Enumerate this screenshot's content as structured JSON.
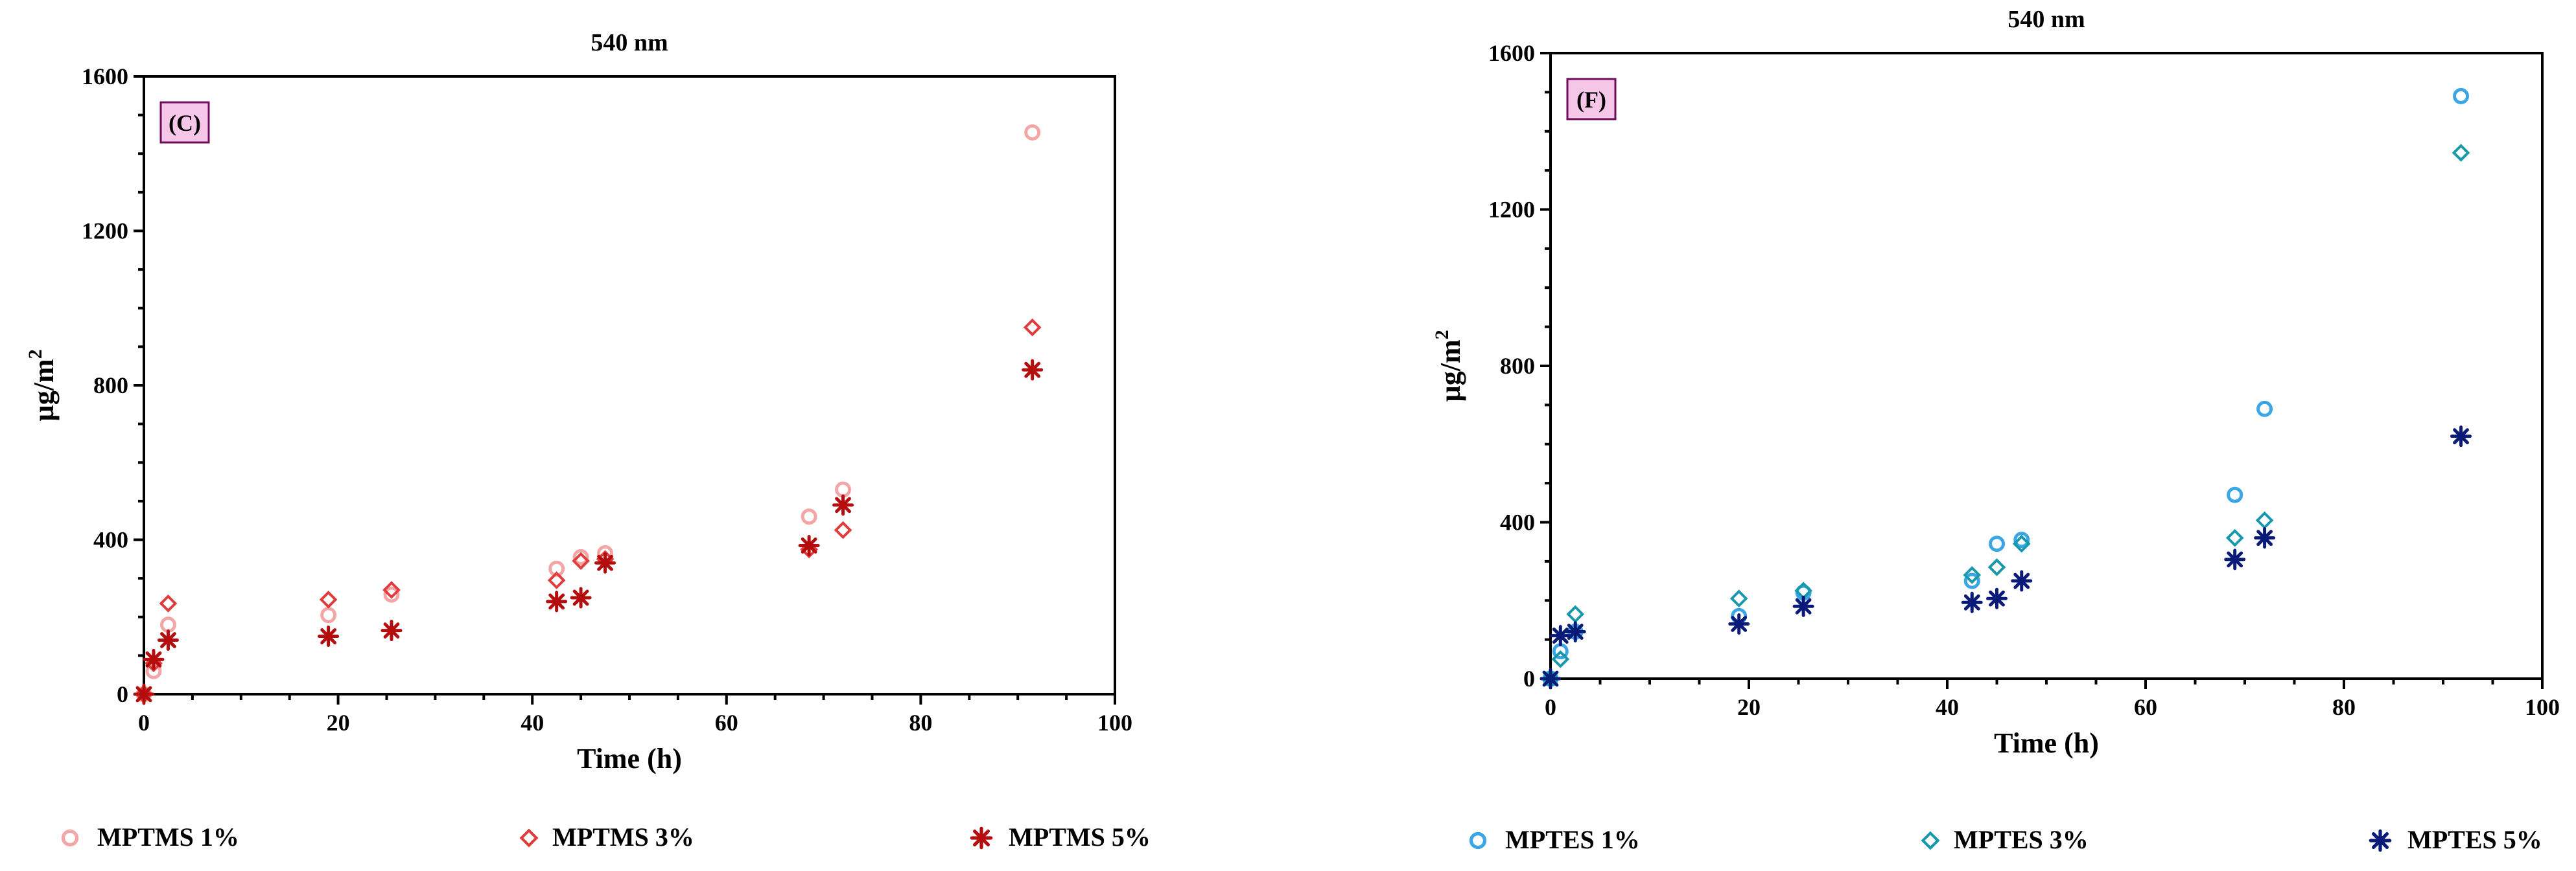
{
  "chart_data": [
    {
      "type": "scatter",
      "title": "540 nm",
      "panel_label": "(C)",
      "xlabel": "Time (h)",
      "ylabel": "µg/m",
      "ylabel_sup": "2",
      "xlim": [
        0,
        100
      ],
      "ylim": [
        0,
        1600
      ],
      "xticks": [
        0,
        20,
        40,
        60,
        80,
        100
      ],
      "yticks": [
        0,
        400,
        800,
        1200,
        1600
      ],
      "grid": false,
      "legend_position": "bottom",
      "series": [
        {
          "name": "MPTMS 1%",
          "marker": "circle",
          "color": "#f4a6a6",
          "points": [
            [
              0,
              0
            ],
            [
              1,
              60
            ],
            [
              2.5,
              180
            ],
            [
              19,
              205
            ],
            [
              25.5,
              258
            ],
            [
              42.5,
              325
            ],
            [
              45,
              355
            ],
            [
              47.5,
              365
            ],
            [
              68.5,
              460
            ],
            [
              72,
              530
            ],
            [
              91.5,
              1455
            ]
          ]
        },
        {
          "name": "MPTMS 3%",
          "marker": "diamond",
          "color": "#e03c3c",
          "points": [
            [
              0,
              0
            ],
            [
              1,
              80
            ],
            [
              2.5,
              235
            ],
            [
              19,
              245
            ],
            [
              25.5,
              270
            ],
            [
              42.5,
              295
            ],
            [
              45,
              345
            ],
            [
              47.5,
              350
            ],
            [
              68.5,
              375
            ],
            [
              72,
              425
            ],
            [
              91.5,
              950
            ]
          ]
        },
        {
          "name": "MPTMS 5%",
          "marker": "asterisk",
          "color": "#b50d0d",
          "points": [
            [
              0,
              0
            ],
            [
              1,
              90
            ],
            [
              2.5,
              140
            ],
            [
              19,
              150
            ],
            [
              25.5,
              165
            ],
            [
              42.5,
              240
            ],
            [
              45,
              250
            ],
            [
              47.5,
              340
            ],
            [
              68.5,
              385
            ],
            [
              72,
              490
            ],
            [
              91.5,
              840
            ]
          ]
        }
      ]
    },
    {
      "type": "scatter",
      "title": "540 nm",
      "panel_label": "(F)",
      "xlabel": "Time (h)",
      "ylabel": "µg/m",
      "ylabel_sup": "2",
      "xlim": [
        0,
        100
      ],
      "ylim": [
        0,
        1600
      ],
      "xticks": [
        0,
        20,
        40,
        60,
        80,
        100
      ],
      "yticks": [
        0,
        400,
        800,
        1200,
        1600
      ],
      "grid": false,
      "legend_position": "bottom",
      "series": [
        {
          "name": "MPTES 1%",
          "marker": "circle",
          "color": "#3aa6e6",
          "points": [
            [
              0,
              0
            ],
            [
              1,
              70
            ],
            [
              2.5,
              120
            ],
            [
              19,
              160
            ],
            [
              25.5,
              220
            ],
            [
              42.5,
              250
            ],
            [
              45,
              345
            ],
            [
              47.5,
              355
            ],
            [
              69,
              470
            ],
            [
              72,
              690
            ],
            [
              91.8,
              1490
            ]
          ]
        },
        {
          "name": "MPTES 3%",
          "marker": "diamond",
          "color": "#1899ab",
          "points": [
            [
              0,
              0
            ],
            [
              1,
              50
            ],
            [
              2.5,
              165
            ],
            [
              19,
              205
            ],
            [
              25.5,
              225
            ],
            [
              42.5,
              265
            ],
            [
              45,
              285
            ],
            [
              47.5,
              345
            ],
            [
              69,
              360
            ],
            [
              72,
              405
            ],
            [
              91.8,
              1345
            ]
          ]
        },
        {
          "name": "MPTES 5%",
          "marker": "asterisk",
          "color": "#0a1a78",
          "points": [
            [
              0,
              0
            ],
            [
              1,
              110
            ],
            [
              2.5,
              120
            ],
            [
              19,
              140
            ],
            [
              25.5,
              185
            ],
            [
              42.5,
              195
            ],
            [
              45,
              205
            ],
            [
              47.5,
              250
            ],
            [
              69,
              305
            ],
            [
              72,
              360
            ],
            [
              91.8,
              620
            ]
          ]
        }
      ]
    }
  ]
}
